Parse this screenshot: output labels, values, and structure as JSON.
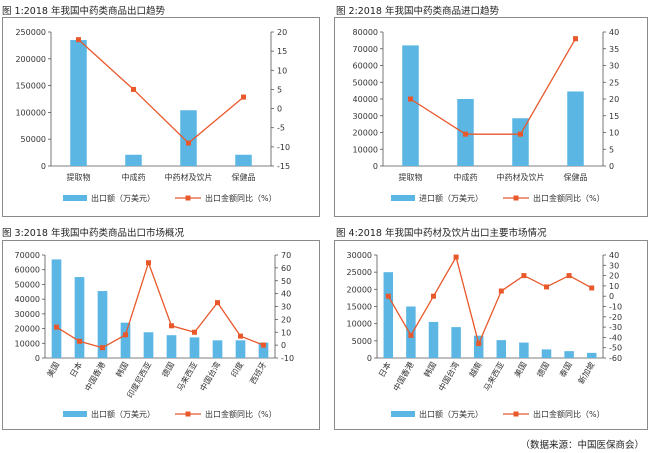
{
  "page": {
    "source": "（数据来源：中国医保商会）"
  },
  "colors": {
    "bar": "#5bb6e3",
    "line": "#e8582a",
    "axis": "#555555"
  },
  "chart_data": [
    {
      "type": "bar",
      "title": "图 1:2018 年我国中药类商品出口趋势",
      "categories": [
        "提取物",
        "中成药",
        "中药材及饮片",
        "保健品"
      ],
      "series": [
        {
          "name": "出口额（万美元）",
          "kind": "bar",
          "axis": "left",
          "values": [
            235000,
            21000,
            104000,
            21000
          ]
        },
        {
          "name": "出口金额同比（%）",
          "kind": "line",
          "axis": "right",
          "values": [
            18,
            5,
            -9,
            3
          ]
        }
      ],
      "ylim": [
        0,
        250000
      ],
      "yticks": [
        0,
        50000,
        100000,
        150000,
        200000,
        250000
      ],
      "y2lim": [
        -15,
        20
      ],
      "y2ticks": [
        -15,
        -10,
        -5,
        0,
        5,
        10,
        15,
        20
      ],
      "legend": "bottom",
      "grid": false
    },
    {
      "type": "bar",
      "title": "图 2:2018 年我国中药类商品进口趋势",
      "categories": [
        "提取物",
        "中成药",
        "中药材及饮片",
        "保健品"
      ],
      "series": [
        {
          "name": "进口额（万美元）",
          "kind": "bar",
          "axis": "left",
          "values": [
            72000,
            40000,
            28500,
            44500
          ]
        },
        {
          "name": "出口金额同比（%）",
          "kind": "line",
          "axis": "right",
          "values": [
            20,
            9.5,
            9.5,
            38
          ]
        }
      ],
      "ylim": [
        0,
        80000
      ],
      "yticks": [
        0,
        10000,
        20000,
        30000,
        40000,
        50000,
        60000,
        70000,
        80000
      ],
      "y2lim": [
        0,
        40
      ],
      "y2ticks": [
        0,
        5,
        10,
        15,
        20,
        25,
        30,
        35,
        40
      ],
      "legend": "bottom",
      "grid": false
    },
    {
      "type": "bar",
      "title": "图 3:2018 年我国中药类商品出口市场概况",
      "categories": [
        "美国",
        "日本",
        "中国香港",
        "韩国",
        "印度尼西亚",
        "德国",
        "马来西亚",
        "中国台湾",
        "印度",
        "西班牙"
      ],
      "series": [
        {
          "name": "出口额（万美元）",
          "kind": "bar",
          "axis": "left",
          "values": [
            67000,
            55000,
            45500,
            24000,
            17500,
            15500,
            14000,
            12000,
            12000,
            10500
          ]
        },
        {
          "name": "出口金额同比（%）",
          "kind": "line",
          "axis": "right",
          "values": [
            14,
            3,
            -2,
            8,
            64,
            15,
            10,
            33,
            7,
            0
          ]
        }
      ],
      "ylim": [
        0,
        70000
      ],
      "yticks": [
        0,
        10000,
        20000,
        30000,
        40000,
        50000,
        60000,
        70000
      ],
      "y2lim": [
        -10,
        70
      ],
      "y2ticks": [
        -10,
        0,
        10,
        20,
        30,
        40,
        50,
        60,
        70
      ],
      "legend": "bottom",
      "grid": false
    },
    {
      "type": "bar",
      "title": "图 4:2018 年我国中药材及饮片出口主要市场情况",
      "categories": [
        "日本",
        "中国香港",
        "韩国",
        "中国台湾",
        "越南",
        "马来西亚",
        "美国",
        "德国",
        "泰国",
        "新加坡"
      ],
      "series": [
        {
          "name": "出口额（万美元）",
          "kind": "bar",
          "axis": "left",
          "values": [
            25000,
            15000,
            10500,
            9000,
            6500,
            5200,
            4500,
            2500,
            2000,
            1500
          ]
        },
        {
          "name": "出口金额同比（%）",
          "kind": "line",
          "axis": "right",
          "values": [
            0,
            -38,
            0,
            38,
            -46,
            5,
            20,
            9,
            20,
            8
          ]
        }
      ],
      "ylim": [
        0,
        30000
      ],
      "yticks": [
        0,
        5000,
        10000,
        15000,
        20000,
        25000,
        30000
      ],
      "y2lim": [
        -60,
        40
      ],
      "y2ticks": [
        -60,
        -50,
        -40,
        -30,
        -20,
        -10,
        0,
        10,
        20,
        30,
        40
      ],
      "legend": "bottom",
      "grid": false
    }
  ]
}
